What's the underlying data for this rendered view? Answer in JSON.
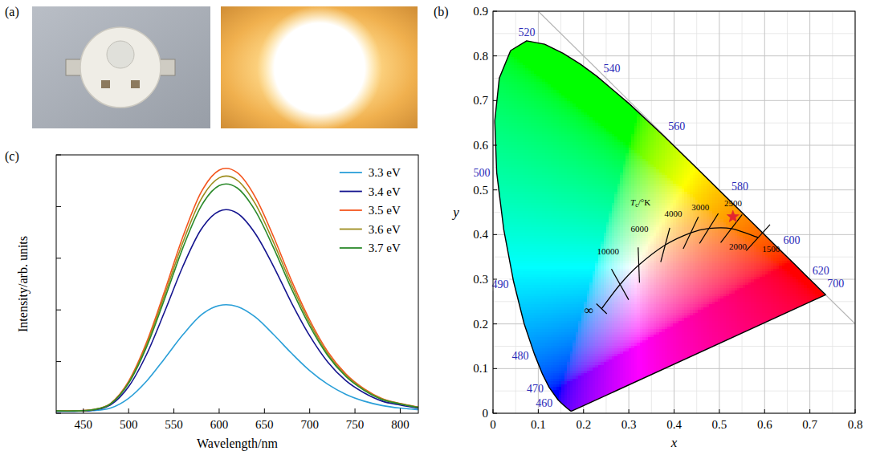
{
  "panel_a": {
    "label": "(a)"
  },
  "chart_data": [
    {
      "type": "chromaticity",
      "panel": "(b)",
      "x_label": "x",
      "y_label": "y",
      "xlim": [
        0,
        0.8
      ],
      "ylim": [
        0,
        0.9
      ],
      "xticks": [
        0,
        0.1,
        0.2,
        0.3,
        0.4,
        0.5,
        0.6,
        0.7,
        0.8
      ],
      "yticks": [
        0,
        0.1,
        0.2,
        0.3,
        0.4,
        0.5,
        0.6,
        0.7,
        0.8,
        0.9
      ],
      "grid": true,
      "spectral_locus": {
        "x": [
          0.1741,
          0.1714,
          0.1644,
          0.1566,
          0.144,
          0.1241,
          0.1096,
          0.0913,
          0.0687,
          0.0454,
          0.0235,
          0.0082,
          0.0039,
          0.0139,
          0.0389,
          0.0743,
          0.1142,
          0.1547,
          0.1929,
          0.2296,
          0.3016,
          0.3731,
          0.4441,
          0.5125,
          0.5752,
          0.627,
          0.6658,
          0.6915,
          0.7079,
          0.719,
          0.726,
          0.73,
          0.7347
        ],
        "y": [
          0.005,
          0.0051,
          0.0109,
          0.0177,
          0.0297,
          0.0578,
          0.0868,
          0.1327,
          0.2007,
          0.295,
          0.4127,
          0.5384,
          0.6548,
          0.7502,
          0.812,
          0.8338,
          0.8262,
          0.8059,
          0.7816,
          0.7543,
          0.6923,
          0.6245,
          0.5547,
          0.4866,
          0.4242,
          0.3725,
          0.334,
          0.3083,
          0.292,
          0.2809,
          0.274,
          0.27,
          0.2653
        ]
      },
      "wavelength_labels": {
        "wavelength": [
          520,
          540,
          560,
          580,
          600,
          620,
          700,
          500,
          490,
          480,
          470,
          460
        ],
        "x": [
          0.0743,
          0.2296,
          0.3731,
          0.5125,
          0.627,
          0.6915,
          0.7347,
          0.0082,
          0.0454,
          0.0913,
          0.1241,
          0.144
        ],
        "y": [
          0.8338,
          0.7543,
          0.6245,
          0.4866,
          0.3725,
          0.3083,
          0.2653,
          0.5384,
          0.295,
          0.1327,
          0.0578,
          0.0297
        ]
      },
      "planckian_locus": {
        "title": "Tc/°K",
        "x": [
          0.2399,
          0.2807,
          0.3221,
          0.3805,
          0.4369,
          0.477,
          0.5267,
          0.5857
        ],
        "y": [
          0.234,
          0.2884,
          0.3318,
          0.3768,
          0.4041,
          0.4137,
          0.4133,
          0.3931
        ],
        "cct": [
          {
            "value": null,
            "label": "∞"
          },
          10000,
          6000,
          4000,
          3000,
          2500,
          2000,
          1500
        ]
      },
      "reference_line": {
        "x": [
          0.1,
          0.8
        ],
        "y": [
          0.9,
          0.2
        ]
      },
      "series": [
        {
          "x": [
            0.53
          ],
          "y": [
            0.44
          ],
          "color": "#e3262e",
          "marker": "star"
        }
      ]
    },
    {
      "type": "line",
      "panel": "(c)",
      "x_label": "Wavelength/nm",
      "y_label": "Intensity/arb. units",
      "x": [
        420,
        440,
        460,
        480,
        500,
        520,
        540,
        560,
        580,
        600,
        620,
        640,
        660,
        680,
        700,
        720,
        740,
        760,
        780,
        800,
        820
      ],
      "xlim": [
        420,
        820
      ],
      "xticks": [
        450,
        500,
        550,
        600,
        650,
        700,
        750,
        800
      ],
      "ylim": [
        0,
        1
      ],
      "yticks": [
        0,
        0.2,
        0.4,
        0.6,
        0.8,
        1
      ],
      "tick_labels": "x",
      "legend": "upper right",
      "series": [
        {
          "name": "3.3 eV",
          "color": "#2a9fd8",
          "values": [
            0.008,
            0.008,
            0.01,
            0.02,
            0.058,
            0.125,
            0.213,
            0.304,
            0.38,
            0.417,
            0.413,
            0.372,
            0.305,
            0.232,
            0.165,
            0.112,
            0.073,
            0.047,
            0.03,
            0.02,
            0.014
          ]
        },
        {
          "name": "3.4 eV",
          "color": "#15158f",
          "values": [
            0.008,
            0.008,
            0.012,
            0.032,
            0.103,
            0.229,
            0.395,
            0.569,
            0.711,
            0.782,
            0.774,
            0.695,
            0.569,
            0.427,
            0.3,
            0.198,
            0.126,
            0.079,
            0.047,
            0.032,
            0.02
          ]
        },
        {
          "name": "3.5 eV",
          "color": "#f4561f",
          "values": [
            0.01,
            0.01,
            0.014,
            0.038,
            0.124,
            0.276,
            0.475,
            0.684,
            0.855,
            0.941,
            0.931,
            0.836,
            0.684,
            0.513,
            0.361,
            0.238,
            0.152,
            0.095,
            0.057,
            0.038,
            0.024
          ]
        },
        {
          "name": "3.6 eV",
          "color": "#9c8c1c",
          "values": [
            0.009,
            0.009,
            0.014,
            0.037,
            0.12,
            0.267,
            0.46,
            0.662,
            0.828,
            0.911,
            0.902,
            0.81,
            0.662,
            0.497,
            0.35,
            0.23,
            0.147,
            0.092,
            0.055,
            0.037,
            0.023
          ]
        },
        {
          "name": "3.7 eV",
          "color": "#2b8a2b",
          "values": [
            0.009,
            0.009,
            0.013,
            0.036,
            0.116,
            0.258,
            0.445,
            0.641,
            0.801,
            0.881,
            0.872,
            0.783,
            0.641,
            0.481,
            0.338,
            0.223,
            0.142,
            0.089,
            0.053,
            0.036,
            0.022
          ]
        }
      ]
    }
  ]
}
